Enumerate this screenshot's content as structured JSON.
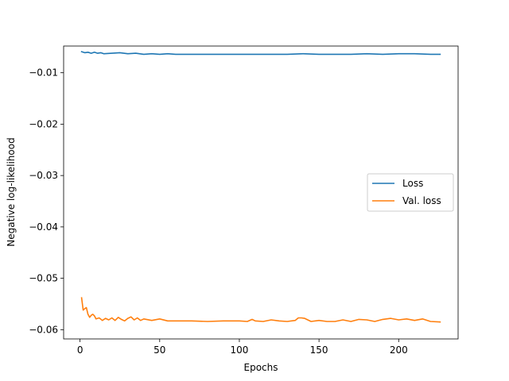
{
  "chart_data": {
    "type": "line",
    "title": "",
    "xlabel": "Epochs",
    "ylabel": "Negative log-likelihood",
    "xlim": [
      -10.3,
      237.3
    ],
    "ylim": [
      -0.0618,
      -0.0048
    ],
    "xticks": [
      0,
      50,
      100,
      150,
      200
    ],
    "xtick_labels": [
      "0",
      "50",
      "100",
      "150",
      "200"
    ],
    "yticks": [
      -0.06,
      -0.05,
      -0.04,
      -0.03,
      -0.02,
      -0.01
    ],
    "ytick_labels": [
      "−0.06",
      "−0.05",
      "−0.04",
      "−0.03",
      "−0.02",
      "−0.01"
    ],
    "grid": false,
    "legend_position": "center-right",
    "series": [
      {
        "name": "Loss",
        "color": "#1f77b4",
        "x": [
          1,
          3,
          5,
          7,
          9,
          11,
          13,
          15,
          20,
          25,
          30,
          35,
          40,
          45,
          50,
          55,
          60,
          70,
          80,
          90,
          100,
          110,
          120,
          130,
          140,
          150,
          160,
          170,
          180,
          190,
          200,
          210,
          220,
          226
        ],
        "y": [
          -0.0059,
          -0.0061,
          -0.006,
          -0.0062,
          -0.006,
          -0.0062,
          -0.0061,
          -0.0063,
          -0.0062,
          -0.0061,
          -0.0063,
          -0.0062,
          -0.0064,
          -0.0063,
          -0.0064,
          -0.0063,
          -0.0064,
          -0.0064,
          -0.0064,
          -0.0064,
          -0.0064,
          -0.0064,
          -0.0064,
          -0.0064,
          -0.0063,
          -0.0064,
          -0.0064,
          -0.0064,
          -0.0063,
          -0.0064,
          -0.0063,
          -0.0063,
          -0.0064,
          -0.0064
        ]
      },
      {
        "name": "Val. loss",
        "color": "#ff7f0e",
        "x": [
          1,
          2,
          3,
          4,
          5,
          6,
          7,
          8,
          9,
          10,
          12,
          14,
          16,
          18,
          20,
          22,
          24,
          26,
          28,
          30,
          32,
          34,
          36,
          38,
          40,
          45,
          50,
          55,
          60,
          70,
          80,
          90,
          100,
          105,
          108,
          110,
          115,
          120,
          125,
          130,
          135,
          137,
          139,
          141,
          145,
          150,
          155,
          160,
          165,
          170,
          175,
          180,
          185,
          190,
          195,
          200,
          205,
          210,
          215,
          220,
          226
        ],
        "y": [
          -0.0538,
          -0.0562,
          -0.0559,
          -0.0557,
          -0.057,
          -0.0576,
          -0.0572,
          -0.057,
          -0.0573,
          -0.0579,
          -0.0577,
          -0.0582,
          -0.0578,
          -0.0581,
          -0.0577,
          -0.0582,
          -0.0576,
          -0.058,
          -0.0583,
          -0.0578,
          -0.0575,
          -0.0581,
          -0.0577,
          -0.0582,
          -0.0579,
          -0.0582,
          -0.0579,
          -0.0583,
          -0.0583,
          -0.0583,
          -0.0584,
          -0.0583,
          -0.0583,
          -0.0584,
          -0.058,
          -0.0583,
          -0.0584,
          -0.0581,
          -0.0583,
          -0.0584,
          -0.0582,
          -0.0577,
          -0.0577,
          -0.0578,
          -0.0584,
          -0.0582,
          -0.0584,
          -0.0584,
          -0.0581,
          -0.0584,
          -0.058,
          -0.0581,
          -0.0584,
          -0.058,
          -0.0578,
          -0.0581,
          -0.0579,
          -0.0582,
          -0.0579,
          -0.0584,
          -0.0585
        ]
      }
    ]
  }
}
